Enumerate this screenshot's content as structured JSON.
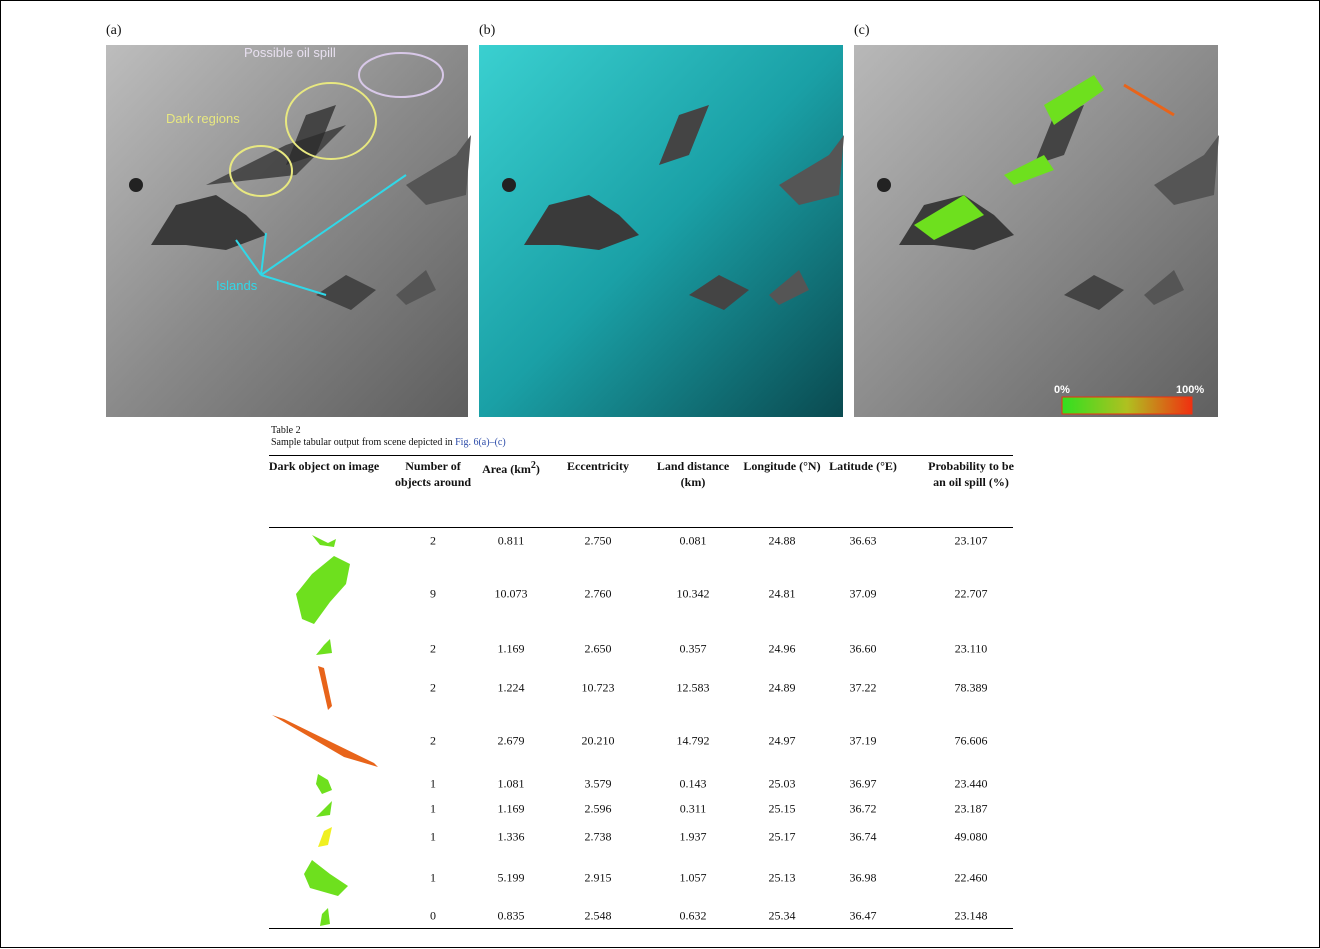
{
  "panels": {
    "labels": [
      "(a)",
      "(b)",
      "(c)"
    ],
    "annotations": {
      "oil_spill": "Possible oil spill",
      "dark_regions": "Dark regions",
      "islands": "Islands"
    },
    "colorbar": {
      "min_label": "0%",
      "max_label": "100%"
    }
  },
  "table": {
    "title": "Table 2",
    "caption": "Sample tabular output from scene depicted in",
    "caption_link": "Fig. 6(a)–(c)",
    "headers": [
      "Dark object on image",
      "Number of objects around",
      {
        "text": "Area (km",
        "sup": "2",
        "end": ")"
      },
      "Eccentricity",
      "Land distance (km)",
      "Longitude (°N)",
      "Latitude (°E)",
      "Probability to be an oil spill (%)"
    ],
    "rows": [
      {
        "color": "#6ee01e",
        "cells": [
          "2",
          "0.811",
          "2.750",
          "0.081",
          "24.88",
          "36.63",
          "23.107"
        ]
      },
      {
        "color": "#6ee01e",
        "cells": [
          "9",
          "10.073",
          "2.760",
          "10.342",
          "24.81",
          "37.09",
          "22.707"
        ]
      },
      {
        "color": "#6ee01e",
        "cells": [
          "2",
          "1.169",
          "2.650",
          "0.357",
          "24.96",
          "36.60",
          "23.110"
        ]
      },
      {
        "color": "#e8641a",
        "cells": [
          "2",
          "1.224",
          "10.723",
          "12.583",
          "24.89",
          "37.22",
          "78.389"
        ]
      },
      {
        "color": "#e8641a",
        "cells": [
          "2",
          "2.679",
          "20.210",
          "14.792",
          "24.97",
          "37.19",
          "76.606"
        ]
      },
      {
        "color": "#6ee01e",
        "cells": [
          "1",
          "1.081",
          "3.579",
          "0.143",
          "25.03",
          "36.97",
          "23.440"
        ]
      },
      {
        "color": "#6ee01e",
        "cells": [
          "1",
          "1.169",
          "2.596",
          "0.311",
          "25.15",
          "36.72",
          "23.187"
        ]
      },
      {
        "color": "#f0f020",
        "cells": [
          "1",
          "1.336",
          "2.738",
          "1.937",
          "25.17",
          "36.74",
          "49.080"
        ]
      },
      {
        "color": "#6ee01e",
        "cells": [
          "1",
          "5.199",
          "2.915",
          "1.057",
          "25.13",
          "36.98",
          "22.460"
        ]
      },
      {
        "color": "#6ee01e",
        "cells": [
          "0",
          "0.835",
          "2.548",
          "0.632",
          "25.34",
          "36.47",
          "23.148"
        ]
      }
    ]
  }
}
